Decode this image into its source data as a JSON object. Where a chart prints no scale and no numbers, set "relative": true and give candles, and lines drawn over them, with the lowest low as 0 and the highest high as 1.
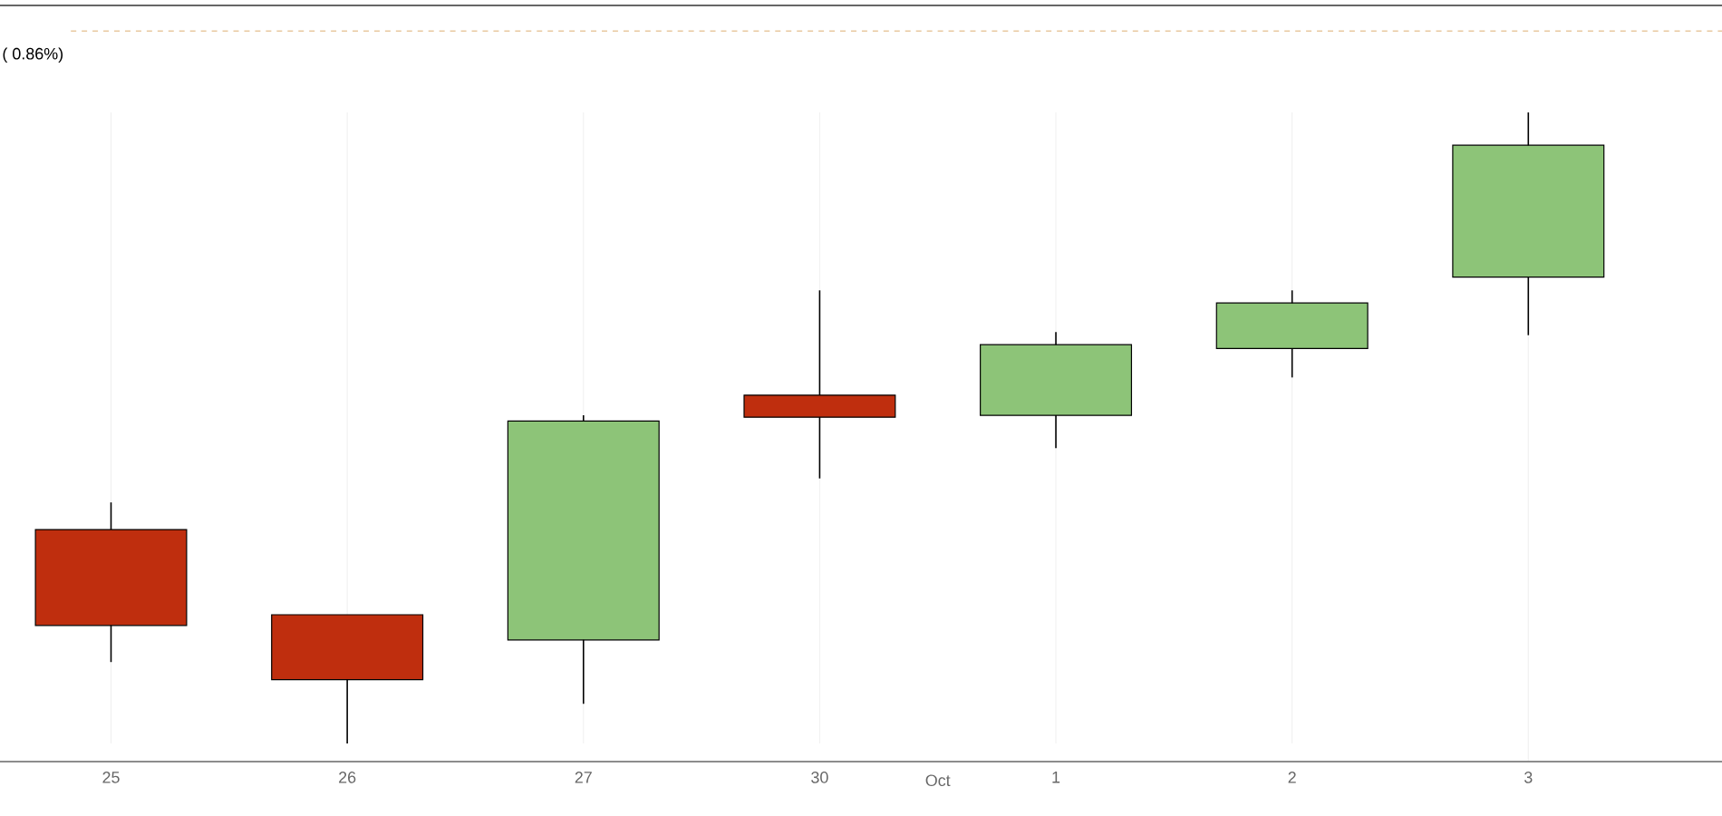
{
  "chart_data": {
    "type": "candlestick",
    "relative": true,
    "categories": [
      "25",
      "26",
      "27",
      "30",
      "1",
      "2",
      "3"
    ],
    "ohlc": [
      [
        0.339,
        0.382,
        0.129,
        0.187
      ],
      [
        0.204,
        0.204,
        0.0,
        0.101
      ],
      [
        0.164,
        0.52,
        0.063,
        0.511
      ],
      [
        0.552,
        0.718,
        0.42,
        0.517
      ],
      [
        0.52,
        0.652,
        0.468,
        0.632
      ],
      [
        0.626,
        0.718,
        0.58,
        0.698
      ],
      [
        0.739,
        1.0,
        0.647,
        0.948
      ]
    ],
    "colors": [
      "#bf2e0e",
      "#bf2e0e",
      "#8dc478",
      "#bf2e0e",
      "#8dc478",
      "#8dc478",
      "#8dc478"
    ],
    "ref_lines": [
      {
        "axis": "y",
        "value": 1.129,
        "color": "#e8c9a0",
        "line_style": "dashed"
      }
    ],
    "annotations": [
      "( 0.86%)",
      "Oct"
    ],
    "grid": "x"
  }
}
